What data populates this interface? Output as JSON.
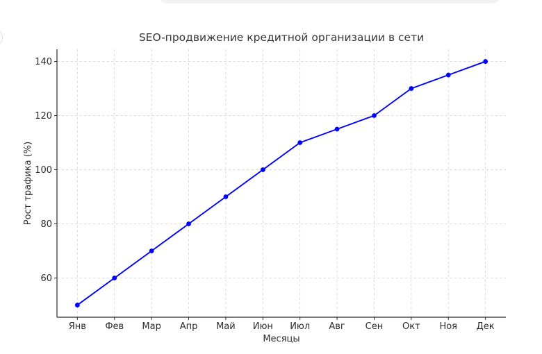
{
  "page": {
    "background": "#ffffff",
    "chat_input_pill": {
      "color": "#f2f2f2"
    },
    "avatar_fragment": {
      "border_color": "#e2e2e2"
    }
  },
  "chart_data": {
    "type": "line",
    "title": "SEO-продвижение кредитной организации в сети",
    "xlabel": "Месяцы",
    "ylabel": "Рост трафика (%)",
    "categories": [
      "Янв",
      "Фев",
      "Мар",
      "Апр",
      "Май",
      "Июн",
      "Июл",
      "Авг",
      "Сен",
      "Окт",
      "Ноя",
      "Дек"
    ],
    "values": [
      50,
      60,
      70,
      80,
      90,
      100,
      110,
      115,
      120,
      130,
      135,
      140
    ],
    "yticks": [
      60,
      80,
      100,
      120,
      140
    ],
    "ylim": [
      45.5,
      144.5
    ],
    "xlim": [
      -0.55,
      11.55
    ],
    "grid": "dashed-both-axes",
    "legend": "none",
    "line_color": "#0000ff",
    "marker": "circle",
    "marker_color": "#0000ff",
    "grid_color": "#d8d8d8",
    "axis_color": "#2b2b2b"
  }
}
